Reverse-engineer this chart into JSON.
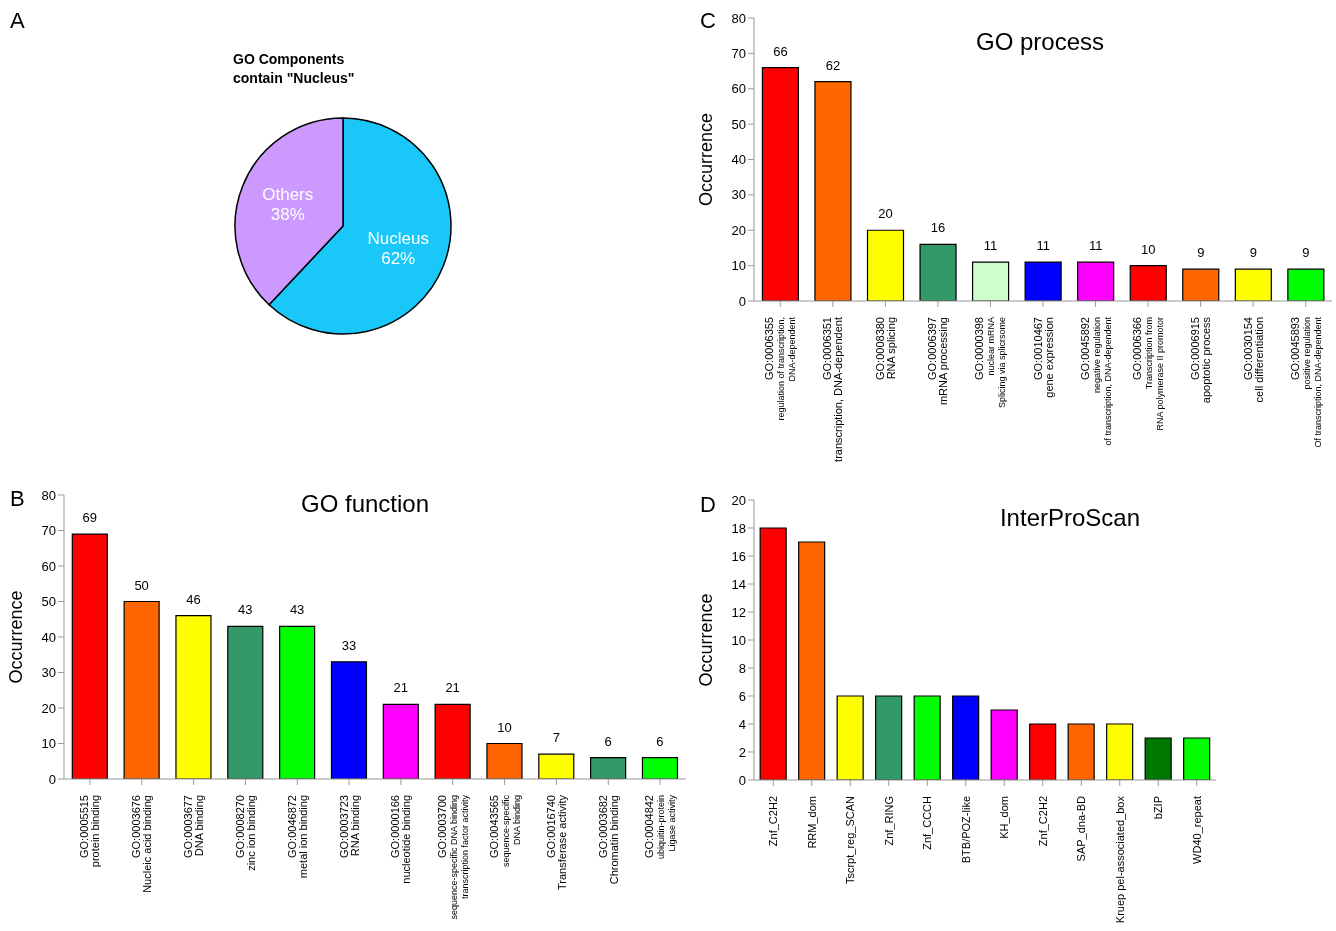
{
  "chart_data": [
    {
      "type": "pie",
      "title": "GO Components\ncontain \"Nucleus\"",
      "categories": [
        "Nucleus",
        "Others"
      ],
      "values": [
        62,
        38
      ],
      "colors": [
        "#19c8f8",
        "#cc99ff"
      ],
      "value_labels": [
        "62%",
        "38%"
      ],
      "annotations": [
        "A"
      ]
    },
    {
      "type": "bar",
      "title": "GO process",
      "ylabel": "Occurrence",
      "annotations": [
        "C"
      ],
      "categories": [
        "GO:0006355\nregulation of transcription,\nDNA-dependent",
        "GO:0006351\ntranscription, DNA-dependent",
        "GO:0008380\nRNA splicing",
        "GO:0006397\nmRNA processing",
        "GO:0000398\nnuclear mRNA\nSplicing via splicrsome",
        "GO:0010467\ngene expression",
        "GO:0045892\nnegative regulation\nof transcription, DNA-dependent",
        "GO:0006366\nTranscription from\nRNA polymerase II promotor",
        "GO:0006915\napoptotic process",
        "GO:0030154\ncell differentiation",
        "GO:0045893\npositive regulation\nOf transcription, DNA-dependent"
      ],
      "values": [
        66,
        62,
        20,
        16,
        11,
        11,
        11,
        10,
        9,
        9,
        9
      ],
      "colors": [
        "#ff0000",
        "#ff6600",
        "#ffff00",
        "#339966",
        "#ccffcc",
        "#0000ff",
        "#ff00ff",
        "#ff0000",
        "#ff6600",
        "#ffff00",
        "#00ff00"
      ],
      "ylim": [
        0,
        80
      ],
      "yticks": [
        0,
        10,
        20,
        30,
        40,
        50,
        60,
        70,
        80
      ],
      "data_labels": true
    },
    {
      "type": "bar",
      "title": "GO function",
      "ylabel": "Occurrence",
      "annotations": [
        "B"
      ],
      "categories": [
        "GO:0005515\nprotein binding",
        "GO:0003676\nNucleic acid binding",
        "GO:0003677\nDNA binding",
        "GO:0008270\nzinc ion binding",
        "GO:0046872\nmetal ion binding",
        "GO:0003723\nRNA binding",
        "GO:0000166\nnucleotide binding",
        "GO:0003700\nsequence-specific DNA binding\ntranscription factor activity",
        "GO:0043565\nsequence-specific\nDNA binding",
        "GO:0016740\nTransferase activity",
        "GO:0003682\nChromatin binding",
        "GO:0004842\nubiquitin-protein\nLigase activity"
      ],
      "values": [
        69,
        50,
        46,
        43,
        43,
        33,
        21,
        21,
        10,
        7,
        6,
        6
      ],
      "colors": [
        "#ff0000",
        "#ff6600",
        "#ffff00",
        "#339966",
        "#00ff00",
        "#0000ff",
        "#ff00ff",
        "#ff0000",
        "#ff6600",
        "#ffff00",
        "#339966",
        "#00ff00"
      ],
      "ylim": [
        0,
        80
      ],
      "yticks": [
        0,
        10,
        20,
        30,
        40,
        50,
        60,
        70,
        80
      ],
      "data_labels": true
    },
    {
      "type": "bar",
      "title": "InterProScan",
      "ylabel": "Occurrence",
      "annotations": [
        "D"
      ],
      "categories": [
        "Znf_C2H2",
        "RRM_dom",
        "Tscrpt_reg_SCAN",
        "Znf_RING",
        "Znf_CCCH",
        "BTB/POZ-like",
        "KH_dom",
        "Znf_C2H2",
        "SAP_dna-BD",
        "Kruep pel-associated_box",
        "bZIP",
        "WD40_repeat"
      ],
      "values": [
        18,
        17,
        6,
        6,
        6,
        6,
        5,
        4,
        4,
        4,
        3,
        3
      ],
      "colors": [
        "#ff0000",
        "#ff6600",
        "#ffff00",
        "#339966",
        "#00ff00",
        "#0000ff",
        "#ff00ff",
        "#ff0000",
        "#ff6600",
        "#ffff00",
        "#007700",
        "#00ff00"
      ],
      "ylim": [
        0,
        20
      ],
      "yticks": [
        0,
        2,
        4,
        6,
        8,
        10,
        12,
        14,
        16,
        18,
        20
      ]
    }
  ]
}
